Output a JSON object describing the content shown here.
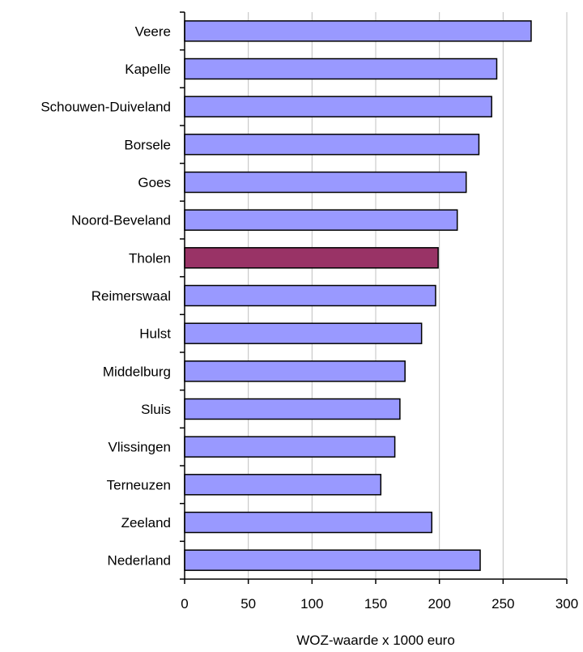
{
  "chart_data": {
    "type": "bar",
    "orientation": "horizontal",
    "categories": [
      "Veere",
      "Kapelle",
      "Schouwen-Duiveland",
      "Borsele",
      "Goes",
      "Noord-Beveland",
      "Tholen",
      "Reimerswaal",
      "Hulst",
      "Middelburg",
      "Sluis",
      "Vlissingen",
      "Terneuzen",
      "Zeeland",
      "Nederland"
    ],
    "values": [
      272,
      245,
      241,
      231,
      221,
      214,
      199,
      197,
      186,
      173,
      169,
      165,
      154,
      194,
      232
    ],
    "highlight_category": "Tholen",
    "xlabel": "WOZ-waarde x 1000 euro",
    "ylabel": "",
    "xlim": [
      0,
      300
    ],
    "xticks": [
      0,
      50,
      100,
      150,
      200,
      250,
      300
    ],
    "grid": "vertical",
    "legend": "none",
    "colors": {
      "bar": "#9999ff",
      "highlight": "#993366",
      "outline": "#000000",
      "grid": "#c0c0c0"
    }
  }
}
